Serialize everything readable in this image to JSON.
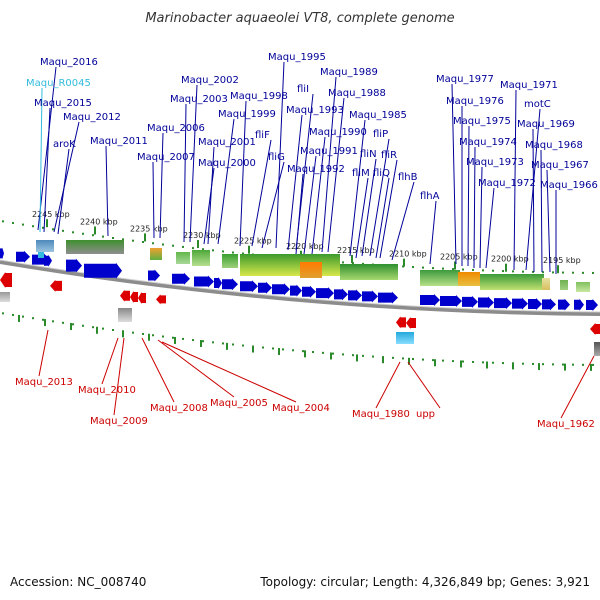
{
  "title": "Marinobacter aquaeolei VT8, complete genome",
  "footer": {
    "accession": "Accession: NC_008740",
    "topology": "Topology: circular; Length: 4,326,849 bp; Genes: 3,921"
  },
  "colors": {
    "plus_strand": "#0000cc",
    "minus_strand": "#dd0000",
    "rna": "#33bbdd",
    "top_labels": "#000099",
    "bottom_labels": "#cc0000",
    "rna_label": "#33bbdd",
    "track": "#888888"
  },
  "scale": {
    "top": [
      "2245 kbp",
      "2240 kbp",
      "2235 kbp",
      "2230 kbp",
      "2225 kbp",
      "2220 kbp",
      "2215 kbp",
      "2210 kbp",
      "2205 kbp",
      "2200 kbp",
      "2195 kbp"
    ]
  },
  "labels_top": [
    "Maqu_2016",
    "Maqu_R0045",
    "Maqu_2015",
    "Maqu_2012",
    "aroK",
    "Maqu_2011",
    "Maqu_2006",
    "Maqu_2007",
    "Maqu_2002",
    "Maqu_2003",
    "Maqu_1999",
    "Maqu_2001",
    "Maqu_2000",
    "Maqu_1998",
    "fliF",
    "fliG",
    "Maqu_1995",
    "fliI",
    "Maqu_1993",
    "Maqu_1989",
    "Maqu_1988",
    "Maqu_1990",
    "Maqu_1991",
    "Maqu_1992",
    "Maqu_1985",
    "fliP",
    "fliN",
    "fliR",
    "fliM",
    "fliQ",
    "flhB",
    "flhA",
    "Maqu_1977",
    "Maqu_1976",
    "Maqu_1975",
    "Maqu_1974",
    "Maqu_1973",
    "Maqu_1972",
    "Maqu_1971",
    "motC",
    "Maqu_1969",
    "Maqu_1968",
    "Maqu_1967",
    "Maqu_1966"
  ],
  "labels_bottom": [
    "Maqu_2013",
    "Maqu_2010",
    "Maqu_2009",
    "Maqu_2008",
    "Maqu_2005",
    "Maqu_2004",
    "Maqu_1980",
    "upp",
    "Maqu_1962"
  ]
}
